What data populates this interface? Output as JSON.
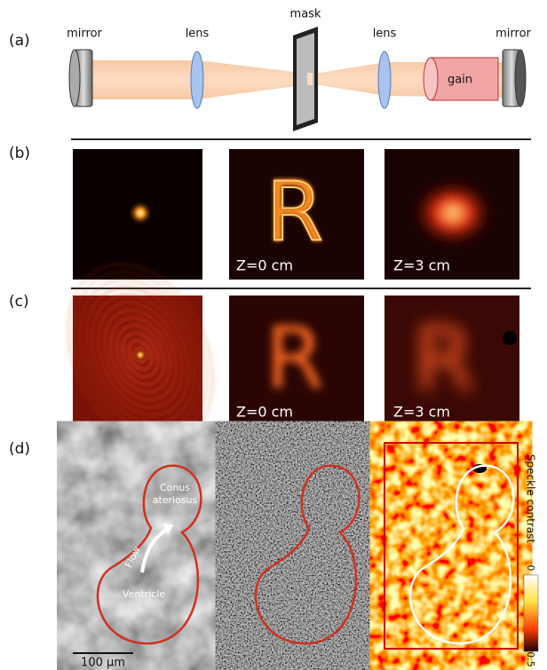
{
  "labels": [
    "(a)",
    "(b)",
    "(c)",
    "(d)"
  ],
  "setup": {
    "mirror_left": "mirror",
    "lens_left": "lens",
    "mask": "mask",
    "lens_right": "lens",
    "mirror_right": "mirror",
    "gain": "gain"
  },
  "panel_b": {
    "glyph": "R",
    "captions": [
      "Z=0 cm",
      "Z=3 cm"
    ]
  },
  "panel_c": {
    "glyph": "R",
    "captions": [
      "Z=0 cm",
      "Z=3 cm"
    ]
  },
  "panel_d": {
    "conus": [
      "Conus",
      "ateriosus"
    ],
    "flow": "Flow",
    "ventricle": "Ventricle",
    "colorbar": {
      "title": "Speckle contrast",
      "min": "0",
      "max": "0.5"
    },
    "scale_bar": "100 μm"
  }
}
